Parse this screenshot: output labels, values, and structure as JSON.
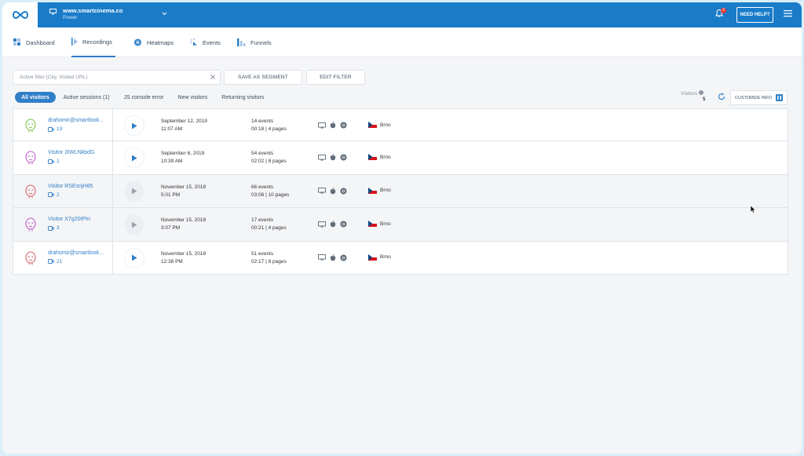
{
  "header": {
    "site_name": "www.smartcinema.co",
    "site_plan": "Power",
    "notification_count": "2",
    "help_label": "NEED HELP?"
  },
  "nav": [
    {
      "label": "Dashboard",
      "icon": "dashboard-icon"
    },
    {
      "label": "Recordings",
      "icon": "recordings-icon",
      "active": true
    },
    {
      "label": "Heatmaps",
      "icon": "heatmaps-icon"
    },
    {
      "label": "Events",
      "icon": "events-icon"
    },
    {
      "label": "Funnels",
      "icon": "funnels-icon"
    }
  ],
  "filter": {
    "placeholder": "Active filter (City, Visited URL)",
    "save_label": "SAVE AS SEGMENT",
    "edit_label": "EDIT FILTER"
  },
  "segments": [
    "All visitors",
    "Active sessions (1)",
    "JS console error",
    "New visitors",
    "Returning visitors"
  ],
  "visitors": {
    "label": "Visitors",
    "count": "5",
    "customize_label": "CUSTOMIZE INFO"
  },
  "colors": {
    "brand": "#1a7cc9",
    "accent": "#2f7fc8"
  },
  "rows": [
    {
      "name": "drahomir@smartlook...",
      "sessions": "13",
      "date": "September 12, 2019",
      "time": "11:07 AM",
      "events": "14 events",
      "duration": "00:18 | 4 pages",
      "city": "Brno"
    },
    {
      "name": "Visitor 3IWLNkbdG",
      "sessions": "1",
      "date": "September 6, 2019",
      "time": "10:39 AM",
      "events": "54 events",
      "duration": "02:02 | 8 pages",
      "city": "Brno"
    },
    {
      "name": "Visitor RSEsnjH85",
      "sessions": "2",
      "date": "November 15, 2018",
      "time": "5:01 PM",
      "events": "66 events",
      "duration": "03:06 | 10 pages",
      "city": "Brno"
    },
    {
      "name": "Visitor X7g20tPIn",
      "sessions": "3",
      "date": "November 15, 2018",
      "time": "3:07 PM",
      "events": "17 events",
      "duration": "00:21 | 4 pages",
      "city": "Brno"
    },
    {
      "name": "drahomir@smartlook...",
      "sessions": "21",
      "date": "November 15, 2018",
      "time": "12:38 PM",
      "events": "51 events",
      "duration": "02:17 | 8 pages",
      "city": "Brno"
    }
  ]
}
